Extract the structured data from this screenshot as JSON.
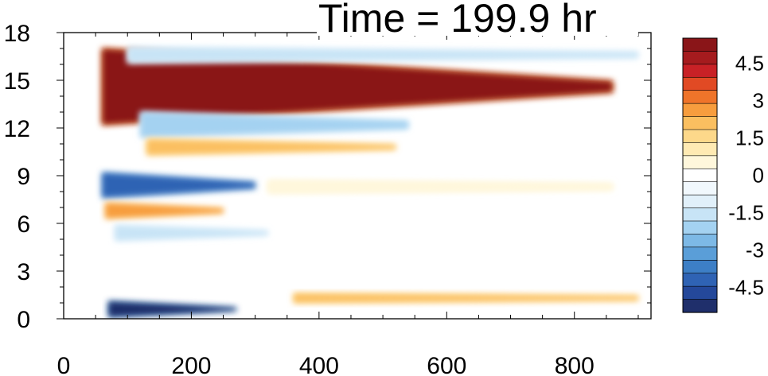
{
  "chart_data": {
    "type": "heatmap",
    "title": "Time = 199.9 hr",
    "xlabel": "",
    "ylabel": "",
    "xlim": [
      0,
      920
    ],
    "ylim": [
      0,
      18
    ],
    "x_ticks": [
      "0",
      "200",
      "400",
      "600",
      "800"
    ],
    "y_ticks": [
      "0",
      "3",
      "6",
      "9",
      "12",
      "15",
      "18"
    ],
    "colorbar": {
      "labels": [
        "4.5",
        "3",
        "1.5",
        "0",
        "-1.5",
        "-3",
        "-4.5"
      ],
      "range": [
        -5.5,
        5.5
      ],
      "levels": 20,
      "colors": [
        "#1f2f6b",
        "#24489a",
        "#2f63b4",
        "#3d7fc6",
        "#5a9ed8",
        "#7db9e6",
        "#a4d2f1",
        "#c8e4f6",
        "#e1f0fa",
        "#f1f8fd",
        "#ffffff",
        "#fff7dc",
        "#ffeab3",
        "#fdd88a",
        "#fbbf60",
        "#f79d3e",
        "#ef742a",
        "#e14a24",
        "#c82126",
        "#a51b1e",
        "#8a1518"
      ]
    },
    "features": [
      {
        "kind": "band",
        "label": "strong positive layer",
        "value": 5.5,
        "x_start": 60,
        "x_end": 860,
        "y_center": 14.6,
        "thickness_start": 2.4,
        "thickness_end": 0.7
      },
      {
        "kind": "band",
        "label": "negative layer above",
        "value": -1.8,
        "x_start": 100,
        "x_end": 900,
        "y_center": 16.6,
        "thickness_start": 0.5,
        "thickness_end": 0.4
      },
      {
        "kind": "band",
        "label": "negative layer below",
        "value": -2.0,
        "x_start": 120,
        "x_end": 540,
        "y_center": 12.2,
        "thickness_start": 0.8,
        "thickness_end": 0.5
      },
      {
        "kind": "band",
        "label": "positive layer",
        "value": 2.0,
        "x_start": 130,
        "x_end": 520,
        "y_center": 10.8,
        "thickness_start": 0.5,
        "thickness_end": 0.3
      },
      {
        "kind": "band",
        "label": "negative layer",
        "value": -4.5,
        "x_start": 60,
        "x_end": 300,
        "y_center": 8.4,
        "thickness_start": 0.8,
        "thickness_end": 0.4
      },
      {
        "kind": "band",
        "label": "positive layer",
        "value": 3.0,
        "x_start": 65,
        "x_end": 250,
        "y_center": 6.8,
        "thickness_start": 0.5,
        "thickness_end": 0.3
      },
      {
        "kind": "band",
        "label": "negative layer",
        "value": -1.5,
        "x_start": 80,
        "x_end": 320,
        "y_center": 5.4,
        "thickness_start": 0.5,
        "thickness_end": 0.3
      },
      {
        "kind": "band",
        "label": "surface negative layer",
        "value": -5.5,
        "x_start": 70,
        "x_end": 270,
        "y_center": 0.6,
        "thickness_start": 0.5,
        "thickness_end": 0.2
      },
      {
        "kind": "band",
        "label": "surface positive patches",
        "value": 2.0,
        "x_start": 360,
        "x_end": 900,
        "y_center": 1.3,
        "thickness_start": 0.3,
        "thickness_end": 0.3
      },
      {
        "kind": "band",
        "label": "weak positive layer",
        "value": 0.8,
        "x_start": 320,
        "x_end": 860,
        "y_center": 8.3,
        "thickness_start": 0.4,
        "thickness_end": 0.4
      }
    ]
  }
}
